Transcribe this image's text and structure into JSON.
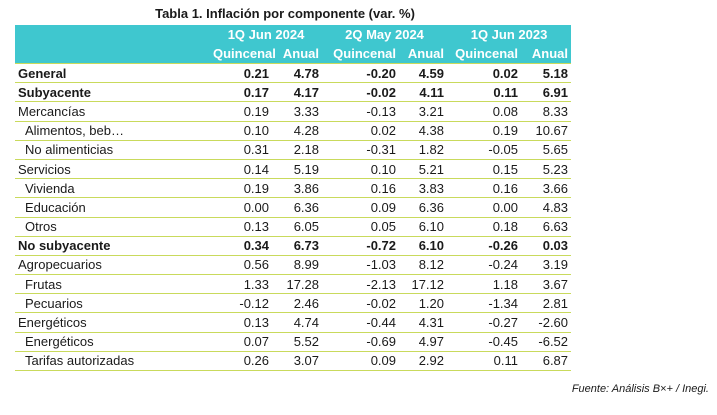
{
  "title": "Tabla 1. Inflación por componente (var. %)",
  "periods": [
    "1Q Jun 2024",
    "2Q May 2024",
    "1Q Jun 2023"
  ],
  "subheaders": [
    "Quincenal",
    "Anual",
    "Quincenal",
    "Anual",
    "Quincenal",
    "Anual"
  ],
  "rows": [
    {
      "label": "General",
      "level": 0,
      "bold": true,
      "values": [
        "0.21",
        "4.78",
        "-0.20",
        "4.59",
        "0.02",
        "5.18"
      ]
    },
    {
      "label": "Subyacente",
      "level": 0,
      "bold": true,
      "values": [
        "0.17",
        "4.17",
        "-0.02",
        "4.11",
        "0.11",
        "6.91"
      ]
    },
    {
      "label": "Mercancías",
      "level": 1,
      "bold": false,
      "values": [
        "0.19",
        "3.33",
        "-0.13",
        "3.21",
        "0.08",
        "8.33"
      ]
    },
    {
      "label": "Alimentos, beb…",
      "level": 2,
      "bold": false,
      "values": [
        "0.10",
        "4.28",
        "0.02",
        "4.38",
        "0.19",
        "10.67"
      ]
    },
    {
      "label": "No alimenticias",
      "level": 2,
      "bold": false,
      "values": [
        "0.31",
        "2.18",
        "-0.31",
        "1.82",
        "-0.05",
        "5.65"
      ]
    },
    {
      "label": "Servicios",
      "level": 1,
      "bold": false,
      "values": [
        "0.14",
        "5.19",
        "0.10",
        "5.21",
        "0.15",
        "5.23"
      ]
    },
    {
      "label": "Vivienda",
      "level": 2,
      "bold": false,
      "values": [
        "0.19",
        "3.86",
        "0.16",
        "3.83",
        "0.16",
        "3.66"
      ]
    },
    {
      "label": "Educación",
      "level": 2,
      "bold": false,
      "values": [
        "0.00",
        "6.36",
        "0.09",
        "6.36",
        "0.00",
        "4.83"
      ]
    },
    {
      "label": "Otros",
      "level": 2,
      "bold": false,
      "values": [
        "0.13",
        "6.05",
        "0.05",
        "6.10",
        "0.18",
        "6.63"
      ]
    },
    {
      "label": "No subyacente",
      "level": 0,
      "bold": true,
      "values": [
        "0.34",
        "6.73",
        "-0.72",
        "6.10",
        "-0.26",
        "0.03"
      ]
    },
    {
      "label": "Agropecuarios",
      "level": 1,
      "bold": false,
      "values": [
        "0.56",
        "8.99",
        "-1.03",
        "8.12",
        "-0.24",
        "3.19"
      ]
    },
    {
      "label": "Frutas",
      "level": 2,
      "bold": false,
      "values": [
        "1.33",
        "17.28",
        "-2.13",
        "17.12",
        "1.18",
        "3.67"
      ]
    },
    {
      "label": "Pecuarios",
      "level": 2,
      "bold": false,
      "values": [
        "-0.12",
        "2.46",
        "-0.02",
        "1.20",
        "-1.34",
        "2.81"
      ]
    },
    {
      "label": "Energéticos",
      "level": 1,
      "bold": false,
      "values": [
        "0.13",
        "4.74",
        "-0.44",
        "4.31",
        "-0.27",
        "-2.60"
      ]
    },
    {
      "label": "Energéticos",
      "level": 2,
      "bold": false,
      "values": [
        "0.07",
        "5.52",
        "-0.69",
        "4.97",
        "-0.45",
        "-6.52"
      ]
    },
    {
      "label": "Tarifas autorizadas",
      "level": 2,
      "bold": false,
      "values": [
        "0.26",
        "3.07",
        "0.09",
        "2.92",
        "0.11",
        "6.87"
      ]
    }
  ],
  "source": "Fuente: Análisis B×+ /  Inegi.",
  "colors": {
    "header_bg": "#3fc7cf",
    "header_text": "#ffffff",
    "row_rule": "#c9da5c"
  }
}
